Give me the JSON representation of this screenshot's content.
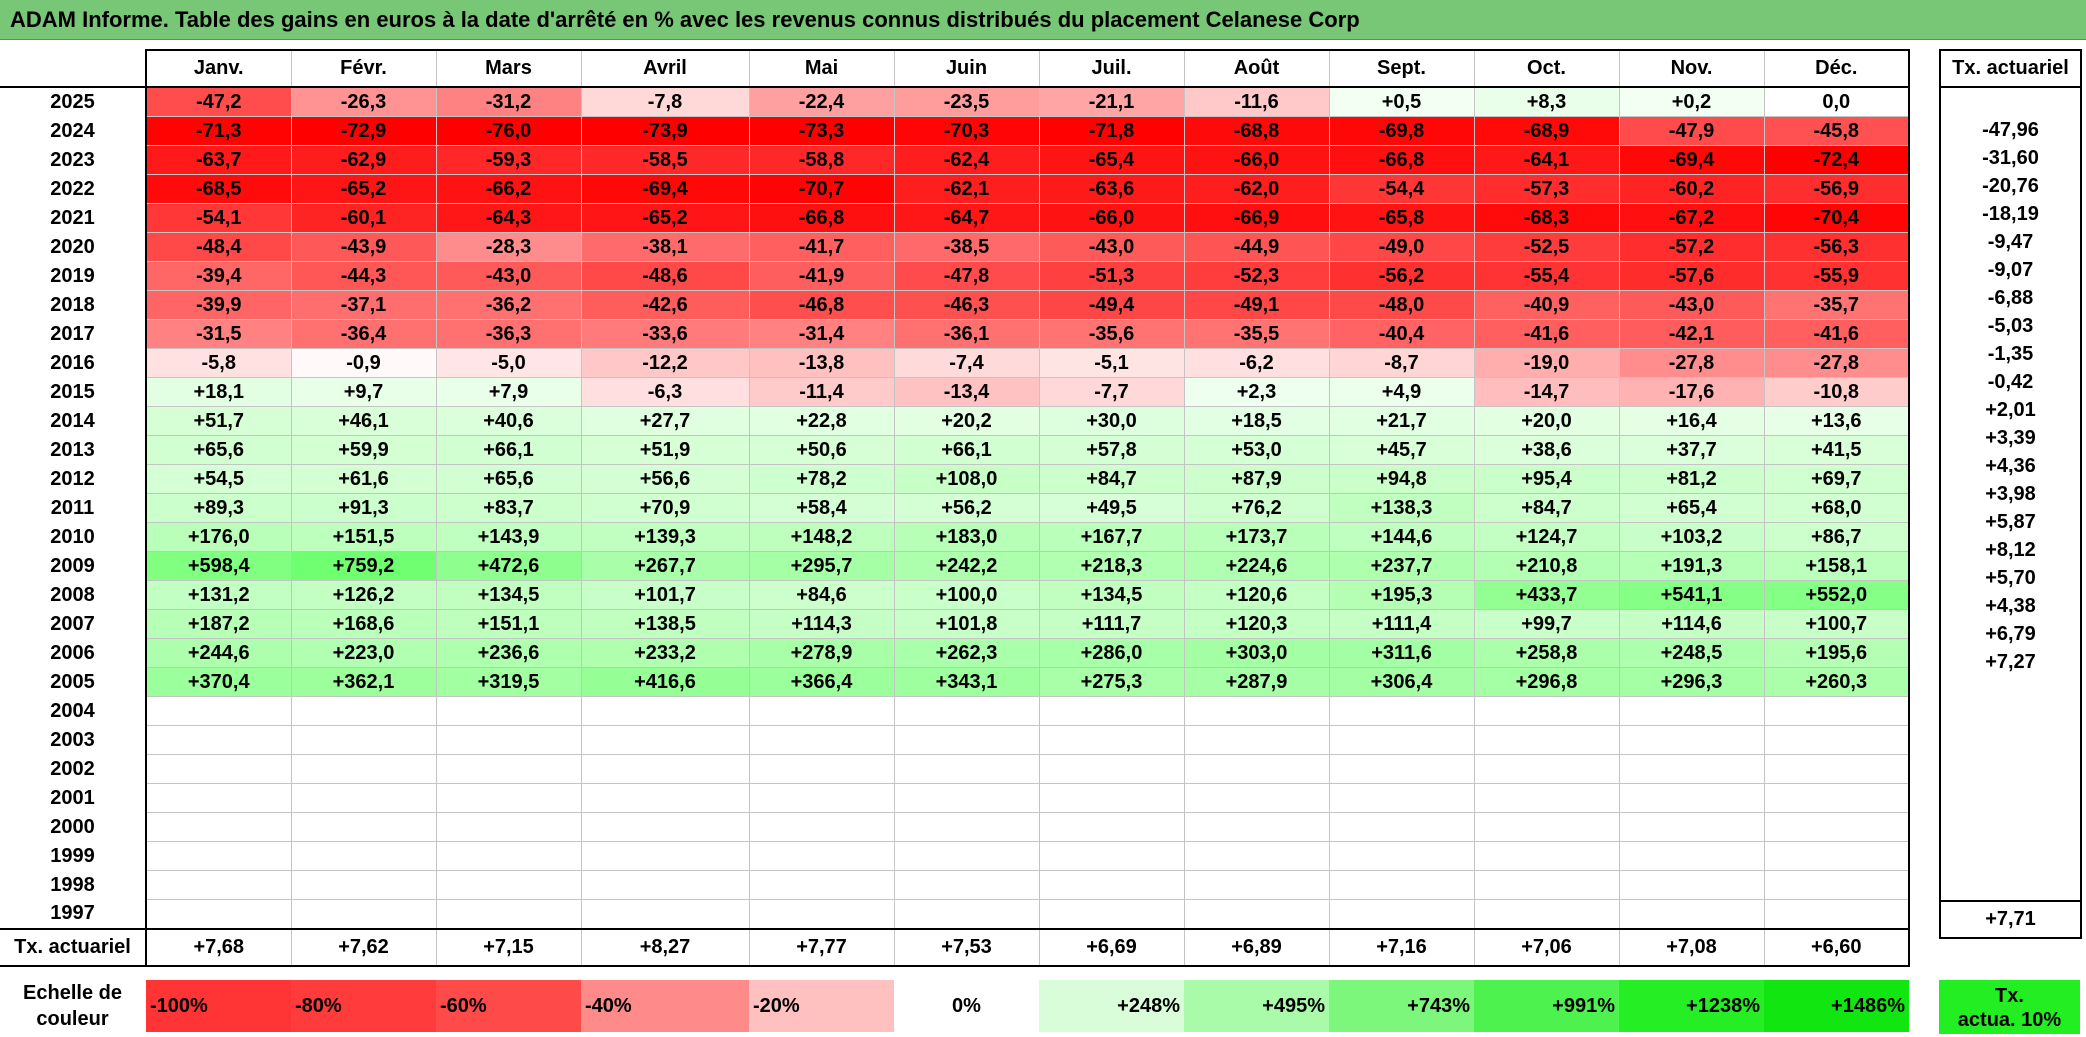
{
  "title": "ADAM Informe. Table des gains en euros à la date d'arrêté en % avec les revenus connus distribués du placement Celanese Corp",
  "months": [
    "Janv.",
    "Févr.",
    "Mars",
    "Avril",
    "Mai",
    "Juin",
    "Juil.",
    "Août",
    "Sept.",
    "Oct.",
    "Nov.",
    "Déc."
  ],
  "rate_header": "Tx. actuariel",
  "rows": [
    {
      "year": "2025",
      "values": [
        "-47,2",
        "-26,3",
        "-31,2",
        "-7,8",
        "-22,4",
        "-23,5",
        "-21,1",
        "-11,6",
        "+0,5",
        "+8,3",
        "+0,2",
        "0,0"
      ],
      "rate": ""
    },
    {
      "year": "2024",
      "values": [
        "-71,3",
        "-72,9",
        "-76,0",
        "-73,9",
        "-73,3",
        "-70,3",
        "-71,8",
        "-68,8",
        "-69,8",
        "-68,9",
        "-47,9",
        "-45,8"
      ],
      "rate": "-47,96"
    },
    {
      "year": "2023",
      "values": [
        "-63,7",
        "-62,9",
        "-59,3",
        "-58,5",
        "-58,8",
        "-62,4",
        "-65,4",
        "-66,0",
        "-66,8",
        "-64,1",
        "-69,4",
        "-72,4"
      ],
      "rate": "-31,60"
    },
    {
      "year": "2022",
      "values": [
        "-68,5",
        "-65,2",
        "-66,2",
        "-69,4",
        "-70,7",
        "-62,1",
        "-63,6",
        "-62,0",
        "-54,4",
        "-57,3",
        "-60,2",
        "-56,9"
      ],
      "rate": "-20,76"
    },
    {
      "year": "2021",
      "values": [
        "-54,1",
        "-60,1",
        "-64,3",
        "-65,2",
        "-66,8",
        "-64,7",
        "-66,0",
        "-66,9",
        "-65,8",
        "-68,3",
        "-67,2",
        "-70,4"
      ],
      "rate": "-18,19"
    },
    {
      "year": "2020",
      "values": [
        "-48,4",
        "-43,9",
        "-28,3",
        "-38,1",
        "-41,7",
        "-38,5",
        "-43,0",
        "-44,9",
        "-49,0",
        "-52,5",
        "-57,2",
        "-56,3"
      ],
      "rate": "-9,47"
    },
    {
      "year": "2019",
      "values": [
        "-39,4",
        "-44,3",
        "-43,0",
        "-48,6",
        "-41,9",
        "-47,8",
        "-51,3",
        "-52,3",
        "-56,2",
        "-55,4",
        "-57,6",
        "-55,9"
      ],
      "rate": "-9,07"
    },
    {
      "year": "2018",
      "values": [
        "-39,9",
        "-37,1",
        "-36,2",
        "-42,6",
        "-46,8",
        "-46,3",
        "-49,4",
        "-49,1",
        "-48,0",
        "-40,9",
        "-43,0",
        "-35,7"
      ],
      "rate": "-6,88"
    },
    {
      "year": "2017",
      "values": [
        "-31,5",
        "-36,4",
        "-36,3",
        "-33,6",
        "-31,4",
        "-36,1",
        "-35,6",
        "-35,5",
        "-40,4",
        "-41,6",
        "-42,1",
        "-41,6"
      ],
      "rate": "-5,03"
    },
    {
      "year": "2016",
      "values": [
        "-5,8",
        "-0,9",
        "-5,0",
        "-12,2",
        "-13,8",
        "-7,4",
        "-5,1",
        "-6,2",
        "-8,7",
        "-19,0",
        "-27,8",
        "-27,8"
      ],
      "rate": "-1,35"
    },
    {
      "year": "2015",
      "values": [
        "+18,1",
        "+9,7",
        "+7,9",
        "-6,3",
        "-11,4",
        "-13,4",
        "-7,7",
        "+2,3",
        "+4,9",
        "-14,7",
        "-17,6",
        "-10,8"
      ],
      "rate": "-0,42"
    },
    {
      "year": "2014",
      "values": [
        "+51,7",
        "+46,1",
        "+40,6",
        "+27,7",
        "+22,8",
        "+20,2",
        "+30,0",
        "+18,5",
        "+21,7",
        "+20,0",
        "+16,4",
        "+13,6"
      ],
      "rate": "+2,01"
    },
    {
      "year": "2013",
      "values": [
        "+65,6",
        "+59,9",
        "+66,1",
        "+51,9",
        "+50,6",
        "+66,1",
        "+57,8",
        "+53,0",
        "+45,7",
        "+38,6",
        "+37,7",
        "+41,5"
      ],
      "rate": "+3,39"
    },
    {
      "year": "2012",
      "values": [
        "+54,5",
        "+61,6",
        "+65,6",
        "+56,6",
        "+78,2",
        "+108,0",
        "+84,7",
        "+87,9",
        "+94,8",
        "+95,4",
        "+81,2",
        "+69,7"
      ],
      "rate": "+4,36"
    },
    {
      "year": "2011",
      "values": [
        "+89,3",
        "+91,3",
        "+83,7",
        "+70,9",
        "+58,4",
        "+56,2",
        "+49,5",
        "+76,2",
        "+138,3",
        "+84,7",
        "+65,4",
        "+68,0"
      ],
      "rate": "+3,98"
    },
    {
      "year": "2010",
      "values": [
        "+176,0",
        "+151,5",
        "+143,9",
        "+139,3",
        "+148,2",
        "+183,0",
        "+167,7",
        "+173,7",
        "+144,6",
        "+124,7",
        "+103,2",
        "+86,7"
      ],
      "rate": "+5,87"
    },
    {
      "year": "2009",
      "values": [
        "+598,4",
        "+759,2",
        "+472,6",
        "+267,7",
        "+295,7",
        "+242,2",
        "+218,3",
        "+224,6",
        "+237,7",
        "+210,8",
        "+191,3",
        "+158,1"
      ],
      "rate": "+8,12"
    },
    {
      "year": "2008",
      "values": [
        "+131,2",
        "+126,2",
        "+134,5",
        "+101,7",
        "+84,6",
        "+100,0",
        "+134,5",
        "+120,6",
        "+195,3",
        "+433,7",
        "+541,1",
        "+552,0"
      ],
      "rate": "+5,70"
    },
    {
      "year": "2007",
      "values": [
        "+187,2",
        "+168,6",
        "+151,1",
        "+138,5",
        "+114,3",
        "+101,8",
        "+111,7",
        "+120,3",
        "+111,4",
        "+99,7",
        "+114,6",
        "+100,7"
      ],
      "rate": "+4,38"
    },
    {
      "year": "2006",
      "values": [
        "+244,6",
        "+223,0",
        "+236,6",
        "+233,2",
        "+278,9",
        "+262,3",
        "+286,0",
        "+303,0",
        "+311,6",
        "+258,8",
        "+248,5",
        "+195,6"
      ],
      "rate": "+6,79"
    },
    {
      "year": "2005",
      "values": [
        "+370,4",
        "+362,1",
        "+319,5",
        "+416,6",
        "+366,4",
        "+343,1",
        "+275,3",
        "+287,9",
        "+306,4",
        "+296,8",
        "+296,3",
        "+260,3"
      ],
      "rate": "+7,27"
    },
    {
      "year": "2004",
      "values": [
        "",
        "",
        "",
        "",
        "",
        "",
        "",
        "",
        "",
        "",
        "",
        ""
      ],
      "rate": ""
    },
    {
      "year": "2003",
      "values": [
        "",
        "",
        "",
        "",
        "",
        "",
        "",
        "",
        "",
        "",
        "",
        ""
      ],
      "rate": ""
    },
    {
      "year": "2002",
      "values": [
        "",
        "",
        "",
        "",
        "",
        "",
        "",
        "",
        "",
        "",
        "",
        ""
      ],
      "rate": ""
    },
    {
      "year": "2001",
      "values": [
        "",
        "",
        "",
        "",
        "",
        "",
        "",
        "",
        "",
        "",
        "",
        ""
      ],
      "rate": ""
    },
    {
      "year": "2000",
      "values": [
        "",
        "",
        "",
        "",
        "",
        "",
        "",
        "",
        "",
        "",
        "",
        ""
      ],
      "rate": ""
    },
    {
      "year": "1999",
      "values": [
        "",
        "",
        "",
        "",
        "",
        "",
        "",
        "",
        "",
        "",
        "",
        ""
      ],
      "rate": ""
    },
    {
      "year": "1998",
      "values": [
        "",
        "",
        "",
        "",
        "",
        "",
        "",
        "",
        "",
        "",
        "",
        ""
      ],
      "rate": ""
    },
    {
      "year": "1997",
      "values": [
        "",
        "",
        "",
        "",
        "",
        "",
        "",
        "",
        "",
        "",
        "",
        ""
      ],
      "rate": ""
    }
  ],
  "footer": {
    "label": "Tx. actuariel",
    "values": [
      "+7,68",
      "+7,62",
      "+7,15",
      "+8,27",
      "+7,77",
      "+7,53",
      "+6,69",
      "+6,89",
      "+7,16",
      "+7,06",
      "+7,08",
      "+6,60"
    ],
    "rate": "+7,71"
  },
  "scale": {
    "label_line1": "Echelle de",
    "label_line2": "couleur",
    "items": [
      {
        "label": "-100%",
        "color": "#ff3535",
        "align": "left"
      },
      {
        "label": "-80%",
        "color": "#ff3b3b",
        "align": "left"
      },
      {
        "label": "-60%",
        "color": "#ff4a4a",
        "align": "left"
      },
      {
        "label": "-40%",
        "color": "#ff8a8a",
        "align": "left"
      },
      {
        "label": "-20%",
        "color": "#ffc0c0",
        "align": "left"
      },
      {
        "label": "0%",
        "color": "#ffffff",
        "align": "center"
      },
      {
        "label": "+248%",
        "color": "#d9fcd9",
        "align": "right"
      },
      {
        "label": "+495%",
        "color": "#a9fba9",
        "align": "right"
      },
      {
        "label": "+743%",
        "color": "#7cf77c",
        "align": "right"
      },
      {
        "label": "+991%",
        "color": "#4ef24e",
        "align": "right"
      },
      {
        "label": "+1238%",
        "color": "#25ee25",
        "align": "right"
      },
      {
        "label": "+1486%",
        "color": "#11e611",
        "align": "right"
      }
    ],
    "rate_line1": "Tx.",
    "rate_line2": "actua. 10%",
    "rate_color": "#22ee22"
  }
}
